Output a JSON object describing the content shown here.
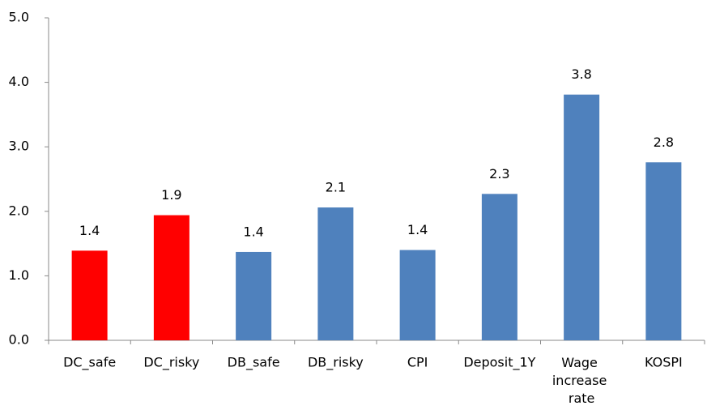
{
  "chart_data": {
    "type": "bar",
    "categories": [
      "DC_safe",
      "DC_risky",
      "DB_safe",
      "DB_risky",
      "CPI",
      "Deposit_1Y",
      "Wage increase rate",
      "KOSPI"
    ],
    "values": [
      1.39,
      1.94,
      1.37,
      2.06,
      1.4,
      2.27,
      3.81,
      2.76
    ],
    "value_labels": [
      "1.4",
      "1.9",
      "1.4",
      "2.1",
      "1.4",
      "2.3",
      "3.8",
      "2.8"
    ],
    "colors": [
      "#ff0000",
      "#ff0000",
      "#4f81bd",
      "#4f81bd",
      "#4f81bd",
      "#4f81bd",
      "#4f81bd",
      "#4f81bd"
    ],
    "ylim": [
      0,
      5
    ],
    "yticks": [
      {
        "value": 0,
        "label": "0.0"
      },
      {
        "value": 1,
        "label": "1.0"
      },
      {
        "value": 2,
        "label": "2.0"
      },
      {
        "value": 3,
        "label": "3.0"
      },
      {
        "value": 4,
        "label": "4.0"
      },
      {
        "value": 5,
        "label": "5.0"
      }
    ],
    "grid": false
  }
}
